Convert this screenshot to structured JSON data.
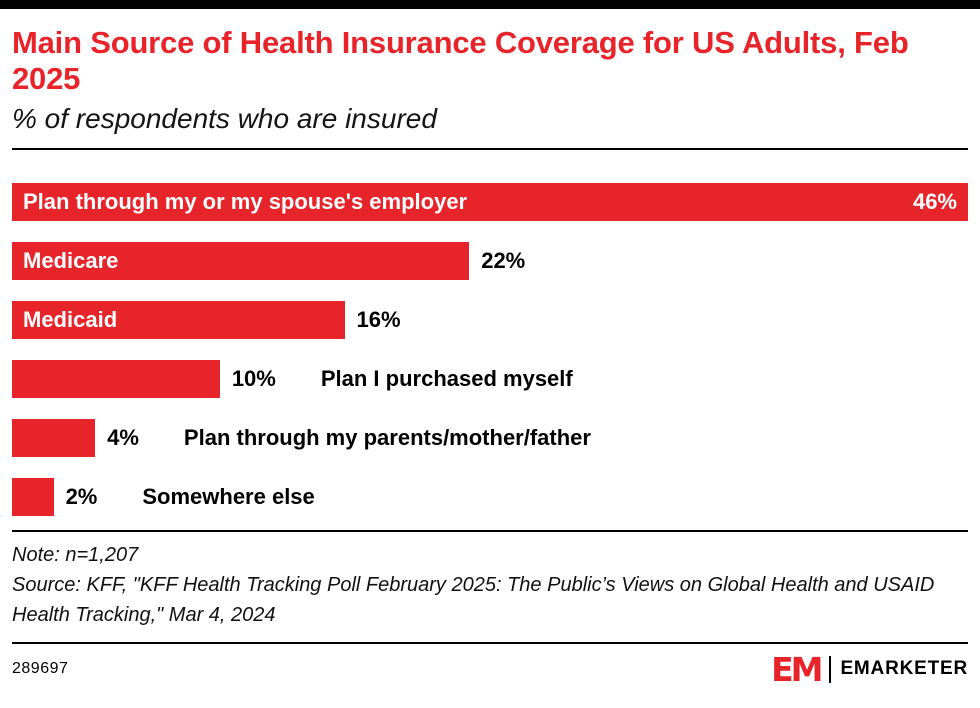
{
  "colors": {
    "accent": "#e8242b",
    "text": "#000000",
    "top_border": "#000000"
  },
  "header": {
    "title": "Main Source of Health Insurance Coverage for US Adults, Feb 2025",
    "subtitle": "% of respondents who are insured"
  },
  "chart_data": {
    "type": "bar",
    "orientation": "horizontal",
    "title": "Main Source of Health Insurance Coverage for US Adults, Feb 2025",
    "xlabel": "",
    "ylabel": "",
    "xlim": [
      0,
      46
    ],
    "grid": false,
    "legend": false,
    "bar_color": "#e8242b",
    "categories": [
      "Plan through my or my spouse's employer",
      "Medicare",
      "Medicaid",
      "Plan I purchased myself",
      "Plan through my parents/mother/father",
      "Somewhere else"
    ],
    "values": [
      46,
      22,
      16,
      10,
      4,
      2
    ],
    "value_labels": [
      "46%",
      "22%",
      "16%",
      "10%",
      "4%",
      "2%"
    ],
    "label_inside": [
      true,
      true,
      true,
      false,
      false,
      false
    ],
    "value_inside": [
      true,
      false,
      false,
      false,
      false,
      false
    ]
  },
  "notes": {
    "note": "Note: n=1,207",
    "source": "Source: KFF, \"KFF Health Tracking Poll February 2025: The Public’s Views on Global Health and USAID Health Tracking,\" Mar 4, 2024"
  },
  "footer": {
    "chart_id": "289697",
    "logo_monogram": "EM",
    "logo_wordmark": "EMARKETER"
  }
}
